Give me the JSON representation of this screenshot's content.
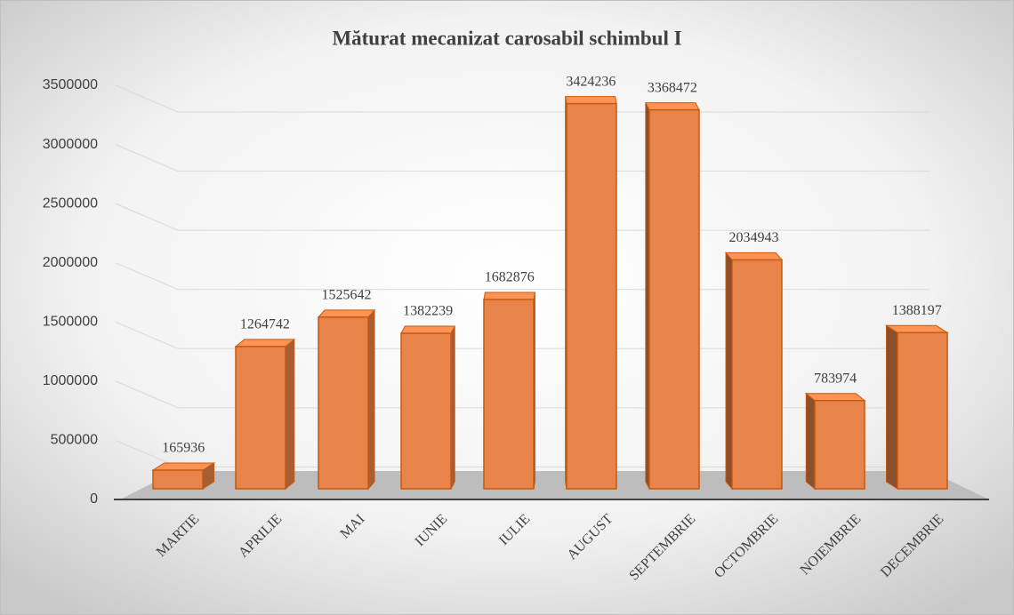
{
  "chart_data": {
    "type": "bar3d",
    "title": "Măturat mecanizat carosabil schimbul I",
    "categories": [
      "MARTIE",
      "APRILIE",
      "MAI",
      "IUNIE",
      "IULIE",
      "AUGUST",
      "SEPTEMBRIE",
      "OCTOMBRIE",
      "NOIEMBRIE",
      "DECEMBRIE"
    ],
    "values": [
      165936,
      1264742,
      1525642,
      1382239,
      1682876,
      3424236,
      3368472,
      2034943,
      783974,
      1388197
    ],
    "color": "#e8834a",
    "ylim": [
      0,
      3500000
    ],
    "yticks": [
      0,
      500000,
      1000000,
      1500000,
      2000000,
      2500000,
      3000000,
      3500000
    ],
    "grid": true
  }
}
